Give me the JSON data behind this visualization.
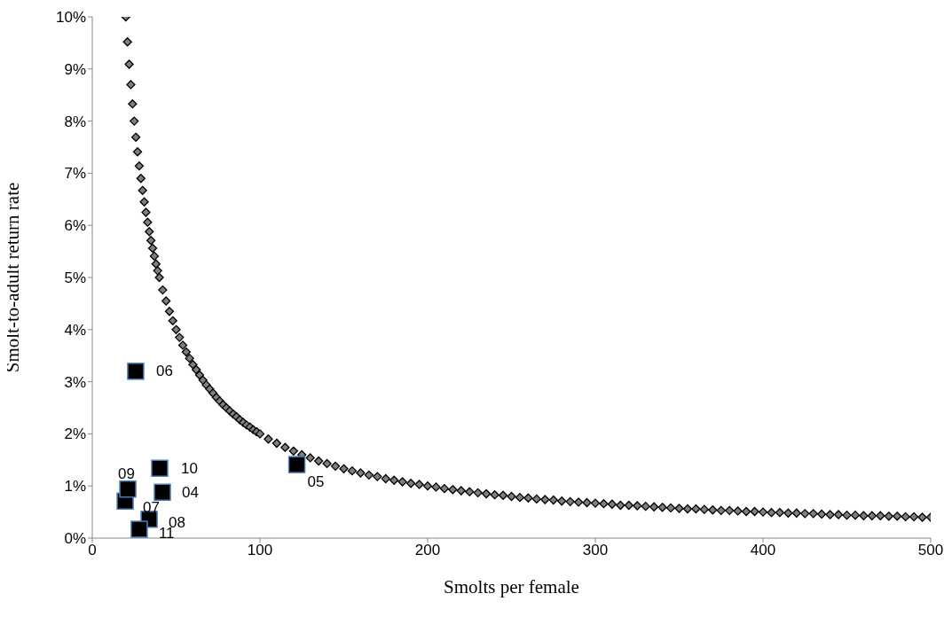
{
  "chart_data": {
    "type": "scatter",
    "xlabel": "Smolts per female",
    "ylabel": "Smolt-to-adult return rate",
    "xlim": [
      0,
      500
    ],
    "xticks": [
      0,
      100,
      200,
      300,
      400,
      500
    ],
    "ylim": [
      0,
      10
    ],
    "yticks": [
      {
        "value": 0,
        "label": "0%"
      },
      {
        "value": 1,
        "label": "1%"
      },
      {
        "value": 2,
        "label": "2%"
      },
      {
        "value": 3,
        "label": "3%"
      },
      {
        "value": 4,
        "label": "4%"
      },
      {
        "value": 5,
        "label": "5%"
      },
      {
        "value": 6,
        "label": "6%"
      },
      {
        "value": 7,
        "label": "7%"
      },
      {
        "value": 8,
        "label": "8%"
      },
      {
        "value": 9,
        "label": "9%"
      },
      {
        "value": 10,
        "label": "10%"
      }
    ],
    "grid": false,
    "legend": false,
    "series": [
      {
        "color": "#7f7f7f",
        "marker": "diamond",
        "x": [
          20,
          21,
          22,
          23,
          24,
          25,
          26,
          27,
          28,
          29,
          30,
          31,
          32,
          33,
          34,
          35,
          36,
          37,
          38,
          39,
          40,
          42,
          44,
          46,
          48,
          50,
          52,
          54,
          56,
          58,
          60,
          62,
          64,
          66,
          68,
          70,
          72,
          74,
          76,
          78,
          80,
          82,
          84,
          86,
          88,
          90,
          92,
          94,
          96,
          98,
          100,
          105,
          110,
          115,
          120,
          125,
          130,
          135,
          140,
          145,
          150,
          155,
          160,
          165,
          170,
          175,
          180,
          185,
          190,
          195,
          200,
          205,
          210,
          215,
          220,
          225,
          230,
          235,
          240,
          245,
          250,
          255,
          260,
          265,
          270,
          275,
          280,
          285,
          290,
          295,
          300,
          305,
          310,
          315,
          320,
          325,
          330,
          335,
          340,
          345,
          350,
          355,
          360,
          365,
          370,
          375,
          380,
          385,
          390,
          395,
          400,
          405,
          410,
          415,
          420,
          425,
          430,
          435,
          440,
          445,
          450,
          455,
          460,
          465,
          470,
          475,
          480,
          485,
          490,
          495,
          500
        ],
        "values": [
          10,
          9.52,
          9.09,
          8.7,
          8.33,
          8,
          7.69,
          7.41,
          7.14,
          6.9,
          6.67,
          6.45,
          6.25,
          6.06,
          5.88,
          5.71,
          5.56,
          5.41,
          5.26,
          5.13,
          5,
          4.76,
          4.55,
          4.35,
          4.17,
          4,
          3.85,
          3.7,
          3.57,
          3.45,
          3.33,
          3.23,
          3.13,
          3.03,
          2.94,
          2.86,
          2.78,
          2.7,
          2.63,
          2.56,
          2.5,
          2.44,
          2.38,
          2.33,
          2.27,
          2.22,
          2.17,
          2.13,
          2.08,
          2.04,
          2,
          1.9,
          1.82,
          1.74,
          1.67,
          1.6,
          1.54,
          1.48,
          1.43,
          1.38,
          1.33,
          1.29,
          1.25,
          1.21,
          1.18,
          1.14,
          1.11,
          1.08,
          1.05,
          1.03,
          1,
          0.98,
          0.95,
          0.93,
          0.91,
          0.89,
          0.87,
          0.85,
          0.83,
          0.82,
          0.8,
          0.78,
          0.77,
          0.75,
          0.74,
          0.73,
          0.71,
          0.7,
          0.69,
          0.68,
          0.67,
          0.66,
          0.65,
          0.63,
          0.63,
          0.62,
          0.61,
          0.6,
          0.59,
          0.58,
          0.57,
          0.56,
          0.56,
          0.55,
          0.54,
          0.53,
          0.53,
          0.52,
          0.51,
          0.51,
          0.5,
          0.49,
          0.49,
          0.48,
          0.48,
          0.47,
          0.47,
          0.46,
          0.45,
          0.45,
          0.44,
          0.44,
          0.43,
          0.43,
          0.43,
          0.42,
          0.42,
          0.41,
          0.41,
          0.4,
          0.4
        ]
      },
      {
        "color": "#000000",
        "marker": "square",
        "x": [
          41.8,
          122,
          25.9,
          19.6,
          33.9,
          21.2,
          40.2,
          28
        ],
        "values": [
          0.88,
          1.41,
          3.2,
          0.71,
          0.36,
          0.94,
          1.34,
          0.17
        ]
      }
    ],
    "annotations": [
      {
        "text": "04",
        "x": 41.8,
        "y": 0.88
      },
      {
        "text": "05",
        "x": 122,
        "y": 1.41
      },
      {
        "text": "06",
        "x": 25.9,
        "y": 3.2
      },
      {
        "text": "07",
        "x": 19.6,
        "y": 0.71
      },
      {
        "text": "08",
        "x": 33.9,
        "y": 0.36
      },
      {
        "text": "09",
        "x": 21.2,
        "y": 0.94
      },
      {
        "text": "10",
        "x": 40.2,
        "y": 1.34
      },
      {
        "text": "11",
        "x": 28,
        "y": 0.17
      }
    ]
  }
}
